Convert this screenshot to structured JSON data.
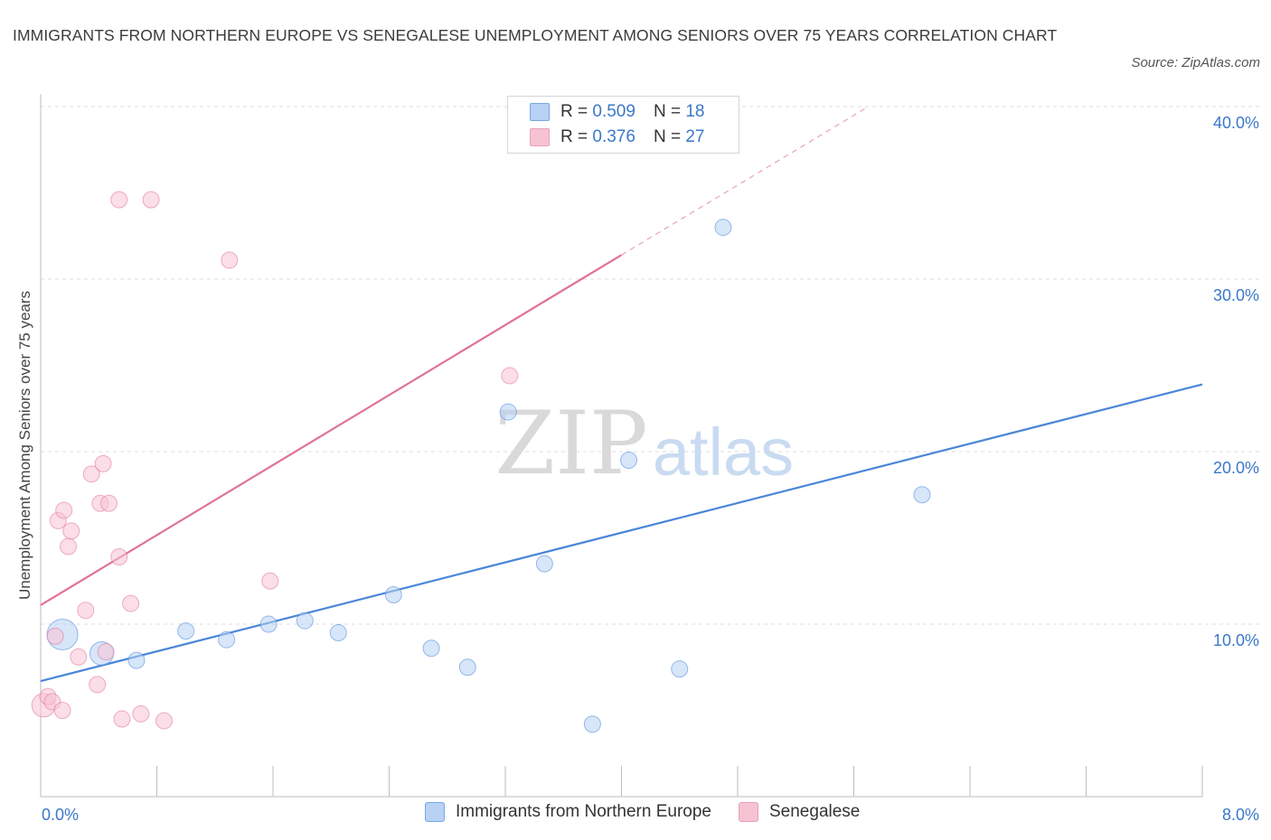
{
  "title": "IMMIGRANTS FROM NORTHERN EUROPE VS SENEGALESE UNEMPLOYMENT AMONG SENIORS OVER 75 YEARS CORRELATION CHART",
  "source": "Source: ZipAtlas.com",
  "watermark": {
    "zip": "ZIP",
    "atlas": "atlas"
  },
  "legend": {
    "r_label": "R =",
    "n_label": "N =",
    "rows": [
      {
        "r": "0.509",
        "n": "18",
        "color": "#a9c9f2"
      },
      {
        "r": "0.376",
        "n": "27",
        "color": "#f7b8cb"
      }
    ]
  },
  "bottom_legend": [
    {
      "label": "Immigrants from Northern Europe",
      "color": "#a9c9f2"
    },
    {
      "label": "Senegalese",
      "color": "#f7b8cb"
    }
  ],
  "chart_data": {
    "type": "scatter",
    "title": "IMMIGRANTS FROM NORTHERN EUROPE VS SENEGALESE UNEMPLOYMENT AMONG SENIORS OVER 75 YEARS CORRELATION CHART",
    "xlabel": "",
    "ylabel": "Unemployment Among Seniors over 75 years",
    "xlim": [
      0,
      8
    ],
    "ylim": [
      0,
      40
    ],
    "x_tick_labels": [
      "0.0%",
      "8.0%"
    ],
    "y_ticks": [
      10,
      20,
      30,
      40
    ],
    "y_tick_labels": [
      "10.0%",
      "20.0%",
      "30.0%",
      "40.0%"
    ],
    "grid": true,
    "series": [
      {
        "name": "Immigrants from Northern Europe",
        "color": "#4a86d8",
        "fill": "#b7d2f4",
        "points": [
          {
            "x": 0.15,
            "y": 9.4,
            "size": 3
          },
          {
            "x": 0.42,
            "y": 8.3,
            "size": 2
          },
          {
            "x": 0.66,
            "y": 7.9,
            "size": 1
          },
          {
            "x": 1.0,
            "y": 9.6,
            "size": 1
          },
          {
            "x": 1.28,
            "y": 9.1,
            "size": 1
          },
          {
            "x": 1.57,
            "y": 10.0,
            "size": 1
          },
          {
            "x": 1.82,
            "y": 10.2,
            "size": 1
          },
          {
            "x": 2.05,
            "y": 9.5,
            "size": 1
          },
          {
            "x": 2.43,
            "y": 11.7,
            "size": 1
          },
          {
            "x": 2.69,
            "y": 8.6,
            "size": 1
          },
          {
            "x": 2.94,
            "y": 7.5,
            "size": 1
          },
          {
            "x": 3.22,
            "y": 22.3,
            "size": 1
          },
          {
            "x": 3.47,
            "y": 13.5,
            "size": 1
          },
          {
            "x": 3.8,
            "y": 4.2,
            "size": 1
          },
          {
            "x": 4.05,
            "y": 19.5,
            "size": 1
          },
          {
            "x": 4.4,
            "y": 7.4,
            "size": 1
          },
          {
            "x": 4.7,
            "y": 33.0,
            "size": 1
          },
          {
            "x": 6.07,
            "y": 17.5,
            "size": 1
          }
        ],
        "trend": {
          "x0": 0,
          "y0": 6.7,
          "x1": 8,
          "y1": 23.9
        }
      },
      {
        "name": "Senegalese",
        "color": "#e0709a",
        "fill": "#f7c3d3",
        "points": [
          {
            "x": 0.02,
            "y": 5.3,
            "size": 2
          },
          {
            "x": 0.05,
            "y": 5.8,
            "size": 1
          },
          {
            "x": 0.08,
            "y": 5.5,
            "size": 1
          },
          {
            "x": 0.1,
            "y": 9.3,
            "size": 1
          },
          {
            "x": 0.12,
            "y": 16.0,
            "size": 1
          },
          {
            "x": 0.15,
            "y": 5.0,
            "size": 1
          },
          {
            "x": 0.16,
            "y": 16.6,
            "size": 1
          },
          {
            "x": 0.19,
            "y": 14.5,
            "size": 1
          },
          {
            "x": 0.21,
            "y": 15.4,
            "size": 1
          },
          {
            "x": 0.26,
            "y": 8.1,
            "size": 1
          },
          {
            "x": 0.31,
            "y": 10.8,
            "size": 1
          },
          {
            "x": 0.35,
            "y": 18.7,
            "size": 1
          },
          {
            "x": 0.39,
            "y": 6.5,
            "size": 1
          },
          {
            "x": 0.41,
            "y": 17.0,
            "size": 1
          },
          {
            "x": 0.43,
            "y": 19.3,
            "size": 1
          },
          {
            "x": 0.45,
            "y": 8.4,
            "size": 1
          },
          {
            "x": 0.47,
            "y": 17.0,
            "size": 1
          },
          {
            "x": 0.54,
            "y": 34.6,
            "size": 1
          },
          {
            "x": 0.54,
            "y": 13.9,
            "size": 1
          },
          {
            "x": 0.56,
            "y": 4.5,
            "size": 1
          },
          {
            "x": 0.62,
            "y": 11.2,
            "size": 1
          },
          {
            "x": 0.69,
            "y": 4.8,
            "size": 1
          },
          {
            "x": 0.76,
            "y": 34.6,
            "size": 1
          },
          {
            "x": 0.85,
            "y": 4.4,
            "size": 1
          },
          {
            "x": 1.3,
            "y": 31.1,
            "size": 1
          },
          {
            "x": 1.58,
            "y": 12.5,
            "size": 1
          },
          {
            "x": 3.23,
            "y": 24.4,
            "size": 1
          }
        ],
        "trend": {
          "x0": 0,
          "y0": 11.1,
          "x1": 4.0,
          "y1": 31.4,
          "dashed_to_x": 5.7,
          "dashed_to_y": 40.0
        }
      }
    ]
  }
}
